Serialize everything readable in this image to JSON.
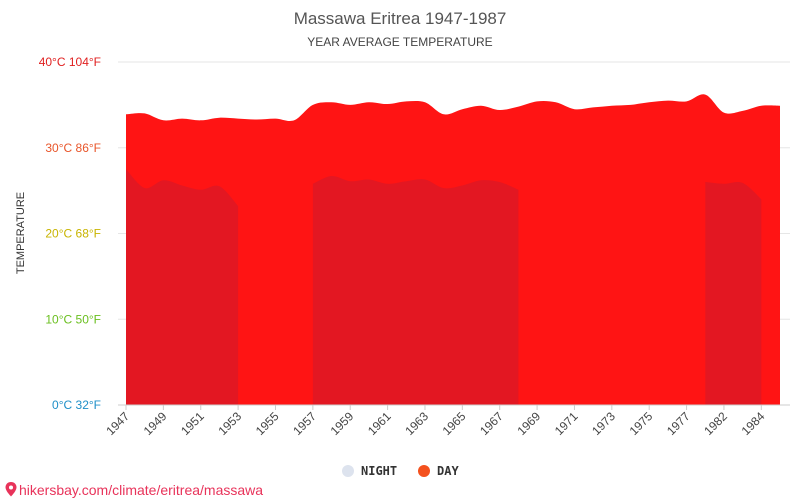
{
  "chart_data": {
    "type": "area",
    "title": "Massawa Eritrea 1947-1987",
    "subtitle": "YEAR AVERAGE TEMPERATURE",
    "ylabel": "TEMPERATURE",
    "ylim": [
      0,
      40
    ],
    "y_ticks": [
      {
        "value": 0,
        "label": "0°C 32°F",
        "color": "#1e8fc8"
      },
      {
        "value": 10,
        "label": "10°C 50°F",
        "color": "#6abf1f"
      },
      {
        "value": 20,
        "label": "20°C 68°F",
        "color": "#c8b400"
      },
      {
        "value": 30,
        "label": "30°C 86°F",
        "color": "#e8552a"
      },
      {
        "value": 40,
        "label": "40°C 104°F",
        "color": "#e02020"
      }
    ],
    "x": [
      1947,
      1948,
      1949,
      1950,
      1951,
      1952,
      1953,
      1954,
      1955,
      1956,
      1957,
      1958,
      1959,
      1960,
      1961,
      1962,
      1963,
      1964,
      1965,
      1966,
      1967,
      1968,
      1969,
      1970,
      1971,
      1972,
      1973,
      1974,
      1975,
      1976,
      1977,
      1978,
      1982,
      1983,
      1984,
      1985
    ],
    "x_tick_labels": [
      "1947",
      "1949",
      "1951",
      "1953",
      "1955",
      "1957",
      "1959",
      "1961",
      "1963",
      "1965",
      "1967",
      "1969",
      "1971",
      "1973",
      "1975",
      "1977",
      "1982",
      "1984"
    ],
    "series": [
      {
        "name": "DAY",
        "color": "#f4511e",
        "values": [
          33.9,
          34.0,
          33.2,
          33.4,
          33.2,
          33.5,
          33.4,
          33.3,
          33.4,
          33.2,
          35.0,
          35.3,
          35.0,
          35.3,
          35.1,
          35.4,
          35.3,
          33.9,
          34.5,
          34.9,
          34.4,
          34.8,
          35.4,
          35.3,
          34.5,
          34.7,
          34.9,
          35.0,
          35.3,
          35.5,
          35.4,
          36.2,
          34.1,
          34.3,
          34.9,
          34.9
        ]
      },
      {
        "name": "NIGHT",
        "color": "#dde3ee",
        "values": [
          27.5,
          25.3,
          26.2,
          25.6,
          25.1,
          25.5,
          23.2,
          null,
          null,
          null,
          25.8,
          26.7,
          26.1,
          26.3,
          25.8,
          26.1,
          26.3,
          25.3,
          25.6,
          26.2,
          26.0,
          25.1,
          null,
          null,
          null,
          null,
          null,
          null,
          null,
          null,
          null,
          26.0,
          25.8,
          25.9,
          24.0,
          null
        ]
      }
    ],
    "legend": {
      "placement": "bottom-center",
      "items": [
        {
          "label": "NIGHT",
          "color": "#dde3ee"
        },
        {
          "label": "DAY",
          "color": "#f4511e"
        }
      ]
    },
    "gradient_stops": [
      {
        "value": 40,
        "color": "#ff1414"
      },
      {
        "value": 30,
        "color": "#ff8c00"
      },
      {
        "value": 21,
        "color": "#f5ff00"
      },
      {
        "value": 14,
        "color": "#8cff00"
      },
      {
        "value": 10,
        "color": "#00e04a"
      },
      {
        "value": 5,
        "color": "#00d7c8"
      },
      {
        "value": 2.5,
        "color": "#00d0ff"
      },
      {
        "value": 0,
        "color": "#2828ff"
      }
    ],
    "grid": true
  },
  "source": {
    "text": "hikersbay.com/climate/eritrea/massawa",
    "icon": "location-pin-icon",
    "color": "#e8335a"
  }
}
